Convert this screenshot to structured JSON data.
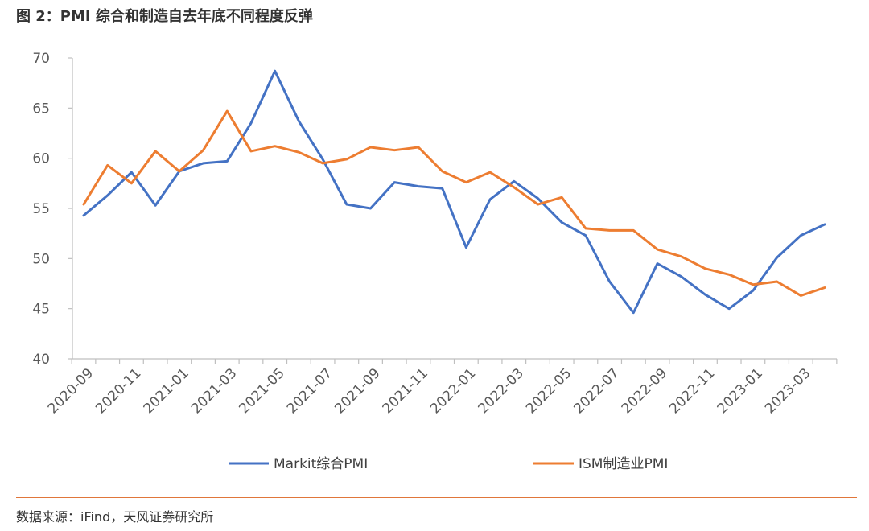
{
  "header": {
    "title": "图 2：PMI 综合和制造自去年底不同程度反弹"
  },
  "footer": {
    "source": "数据来源：iFind，天风证券研究所"
  },
  "colors": {
    "accent_rule": "#e0763a",
    "series_markit": "#4472c4",
    "series_ism": "#ed7d31"
  },
  "chart_data": {
    "type": "line",
    "title": "",
    "xlabel": "",
    "ylabel": "",
    "ylim": [
      40,
      70
    ],
    "yticks": [
      40,
      45,
      50,
      55,
      60,
      65,
      70
    ],
    "grid": false,
    "legend_position": "bottom",
    "x": [
      "2020-09",
      "2020-10",
      "2020-11",
      "2020-12",
      "2021-01",
      "2021-02",
      "2021-03",
      "2021-04",
      "2021-05",
      "2021-06",
      "2021-07",
      "2021-08",
      "2021-09",
      "2021-10",
      "2021-11",
      "2021-12",
      "2022-01",
      "2022-02",
      "2022-03",
      "2022-04",
      "2022-05",
      "2022-06",
      "2022-07",
      "2022-08",
      "2022-09",
      "2022-10",
      "2022-11",
      "2022-12",
      "2023-01",
      "2023-02",
      "2023-03",
      "2023-04"
    ],
    "x_tick_labels": [
      "2020-09",
      "2020-11",
      "2021-01",
      "2021-03",
      "2021-05",
      "2021-07",
      "2021-09",
      "2021-11",
      "2022-01",
      "2022-03",
      "2022-05",
      "2022-07",
      "2022-09",
      "2022-11",
      "2023-01",
      "2023-03"
    ],
    "series": [
      {
        "name": "Markit综合PMI",
        "color": "#4472c4",
        "values": [
          54.3,
          56.3,
          58.6,
          55.3,
          58.7,
          59.5,
          59.7,
          63.5,
          68.7,
          63.7,
          59.9,
          55.4,
          55.0,
          57.6,
          57.2,
          57.0,
          51.1,
          55.9,
          57.7,
          56.0,
          53.6,
          52.3,
          47.7,
          44.6,
          49.5,
          48.2,
          46.4,
          45.0,
          46.8,
          50.1,
          52.3,
          53.4
        ]
      },
      {
        "name": "ISM制造业PMI",
        "color": "#ed7d31",
        "values": [
          55.4,
          59.3,
          57.5,
          60.7,
          58.7,
          60.8,
          64.7,
          60.7,
          61.2,
          60.6,
          59.5,
          59.9,
          61.1,
          60.8,
          61.1,
          58.7,
          57.6,
          58.6,
          57.1,
          55.4,
          56.1,
          53.0,
          52.8,
          52.8,
          50.9,
          50.2,
          49.0,
          48.4,
          47.4,
          47.7,
          46.3,
          47.1
        ]
      }
    ]
  }
}
